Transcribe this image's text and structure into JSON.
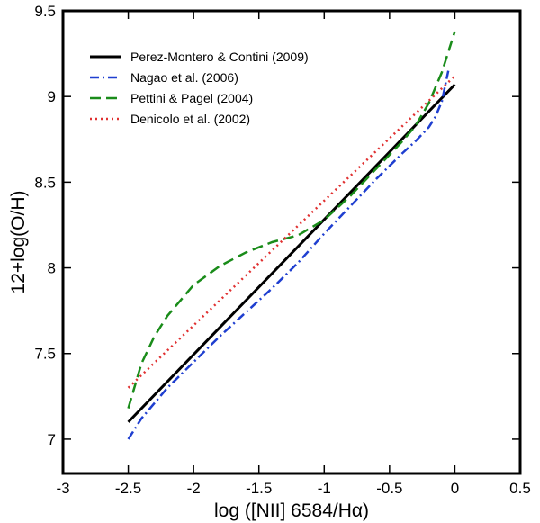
{
  "chart_data": {
    "type": "line",
    "xlabel": "log ([NII] 6584/Hα)",
    "ylabel": "12+log(O/H)",
    "xlim": [
      -3,
      0.5
    ],
    "ylim": [
      6.8,
      9.5
    ],
    "x_ticks": [
      -3,
      -2.5,
      -2,
      -1.5,
      -1,
      -0.5,
      0,
      0.5
    ],
    "x_tick_labels": [
      "-3",
      "-2.5",
      "-2",
      "-1.5",
      "-1",
      "-0.5",
      "0",
      "0.5"
    ],
    "y_ticks": [
      7,
      7.5,
      8,
      8.5,
      9,
      9.5
    ],
    "y_tick_labels": [
      "7",
      "7.5",
      "8",
      "8.5",
      "9",
      "9.5"
    ],
    "grid": false,
    "legend_position": "top-left",
    "series": [
      {
        "name": "Perez-Montero & Contini (2009)",
        "color": "#000000",
        "style": "solid",
        "x": [
          -2.5,
          0.0
        ],
        "y": [
          7.1,
          9.07
        ]
      },
      {
        "name": "Nagao et al. (2006)",
        "color": "#1f3fd0",
        "style": "dashdot",
        "x": [
          -2.5,
          -2.4,
          -2.2,
          -2.0,
          -1.8,
          -1.6,
          -1.4,
          -1.2,
          -1.0,
          -0.8,
          -0.6,
          -0.4,
          -0.3,
          -0.2,
          -0.15,
          -0.1,
          -0.05
        ],
        "y": [
          7.0,
          7.12,
          7.3,
          7.45,
          7.6,
          7.74,
          7.88,
          8.03,
          8.2,
          8.36,
          8.52,
          8.67,
          8.74,
          8.82,
          8.88,
          8.97,
          9.15
        ]
      },
      {
        "name": "Pettini & Pagel (2004)",
        "color": "#1a8c1a",
        "style": "dashed",
        "x": [
          -2.5,
          -2.4,
          -2.3,
          -2.2,
          -2.0,
          -1.8,
          -1.6,
          -1.4,
          -1.2,
          -1.0,
          -0.8,
          -0.6,
          -0.4,
          -0.3,
          -0.2,
          -0.1,
          0.0
        ],
        "y": [
          7.18,
          7.44,
          7.6,
          7.72,
          7.9,
          8.01,
          8.09,
          8.15,
          8.19,
          8.28,
          8.42,
          8.58,
          8.74,
          8.83,
          8.96,
          9.14,
          9.38
        ]
      },
      {
        "name": "Denicolo et al. (2002)",
        "color": "#e03030",
        "style": "dotted",
        "x": [
          -2.5,
          0.0
        ],
        "y": [
          7.3,
          9.12
        ]
      }
    ]
  }
}
